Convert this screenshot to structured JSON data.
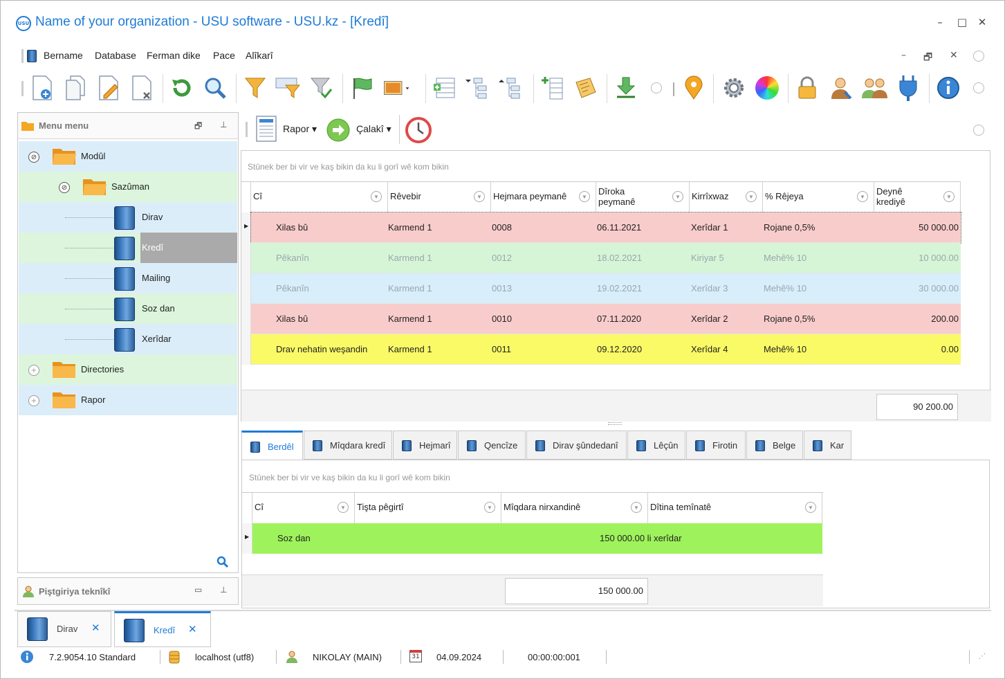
{
  "window": {
    "logo_text": "USU",
    "title": "Name of your organization - USU software - USU.kz - [Kredî]",
    "controls": {
      "minimize": "–",
      "maximize": "□",
      "close": "✕"
    }
  },
  "menubar": {
    "items": [
      "Bername",
      "Database",
      "Ferman dike",
      "Pace",
      "Alîkarî"
    ],
    "mdi_controls": {
      "minimize": "–",
      "restore": "🗗",
      "close": "✕"
    }
  },
  "toolbar": {
    "icons": [
      "add-document-icon",
      "copy-document-icon",
      "edit-document-icon",
      "delete-document-icon",
      "refresh-icon",
      "search-icon",
      "filter-icon",
      "filter-columns-icon",
      "filter-check-icon",
      "flag-icon",
      "image-icon",
      "expand-rows-icon",
      "tree-expand-icon",
      "tree-collapse-icon",
      "add-column-icon",
      "sticky-notes-icon",
      "download-icon",
      "map-pin-icon",
      "settings-icon",
      "color-wheel-icon",
      "lock-icon",
      "user-icon",
      "users-icon",
      "plugin-icon",
      "info-icon"
    ]
  },
  "left_panel": {
    "title": "Menu menu",
    "tree": [
      {
        "label": "Modûl",
        "type": "folder",
        "level": 0,
        "expanded": true
      },
      {
        "label": "Sazûman",
        "type": "folder",
        "level": 1,
        "expanded": true
      },
      {
        "label": "Dirav",
        "type": "module",
        "level": 2
      },
      {
        "label": "Kredî",
        "type": "module",
        "level": 2,
        "selected": true
      },
      {
        "label": "Mailing",
        "type": "module",
        "level": 2
      },
      {
        "label": "Soz dan",
        "type": "module",
        "level": 2
      },
      {
        "label": "Xerîdar",
        "type": "module",
        "level": 2
      },
      {
        "label": "Directories",
        "type": "folder",
        "level": 0,
        "expanded": false
      },
      {
        "label": "Rapor",
        "type": "folder",
        "level": 0,
        "expanded": false
      }
    ],
    "support_title": "Piştgiriya teknîkî"
  },
  "content_toolbar": {
    "report_label": "Rapor",
    "action_label": "Çalakî"
  },
  "main_grid": {
    "group_hint": "Stûnek ber bi vir ve kaş bikin da ku li gorî wê kom bikin",
    "columns": [
      "Cî",
      "Rêvebir",
      "Hejmara peymanê",
      "Dîroka peymanê",
      "Kirrîxwaz",
      "% Rêjeya",
      "Deynê krediyê"
    ],
    "rows": [
      {
        "cells": [
          "Xilas bû",
          "Karmend 1",
          "0008",
          "06.11.2021",
          "Xerîdar 1",
          "Rojane 0,5%",
          "50 000.00"
        ],
        "color": "#f9cccc",
        "faded": false,
        "current": true
      },
      {
        "cells": [
          "Pêkanîn",
          "Karmend 1",
          "0012",
          "18.02.2021",
          "Kiriyar 5",
          "Mehê% 10",
          "10 000.00"
        ],
        "color": "#d6f5d6",
        "faded": true,
        "current": false
      },
      {
        "cells": [
          "Pêkanîn",
          "Karmend 1",
          "0013",
          "19.02.2021",
          "Xerîdar 3",
          "Mehê% 10",
          "30 000.00"
        ],
        "color": "#d8eefb",
        "faded": true,
        "current": false
      },
      {
        "cells": [
          "Xilas bû",
          "Karmend 1",
          "0010",
          "07.11.2020",
          "Xerîdar 2",
          "Rojane 0,5%",
          "200.00"
        ],
        "color": "#f9cccc",
        "faded": false,
        "current": false
      },
      {
        "cells": [
          "Drav nehatin weşandin",
          "Karmend 1",
          "0011",
          "09.12.2020",
          "Xerîdar 4",
          "Mehê% 10",
          "0.00"
        ],
        "color": "#fafa66",
        "faded": false,
        "current": false
      }
    ],
    "total": "90 200.00"
  },
  "detail_tabs": [
    "Berdêl",
    "Mîqdara kredî",
    "Hejmarî",
    "Qencîze",
    "Dirav şûndedanî",
    "Lêçûn",
    "Firotin",
    "Belge",
    "Kar"
  ],
  "detail_grid": {
    "group_hint": "Stûnek ber bi vir ve kaş bikin da ku li gorî wê kom bikin",
    "columns": [
      "Cî",
      "Tişta pêgirtî",
      "Mîqdara nirxandinê",
      "Dîtina temînatê"
    ],
    "rows": [
      {
        "cells": [
          "Soz dan",
          "",
          "150 000.00 li xerîdar",
          ""
        ],
        "color": "#9ef25b"
      }
    ],
    "total": "150 000.00"
  },
  "open_documents": [
    {
      "label": "Dirav",
      "active": false
    },
    {
      "label": "Kredî",
      "active": true
    }
  ],
  "statusbar": {
    "version": "7.2.9054.10 Standard",
    "database": "localhost (utf8)",
    "user": "NIKOLAY (MAIN)",
    "calendar_day": "31",
    "date": "04.09.2024",
    "timer": "00:00:00:001"
  }
}
